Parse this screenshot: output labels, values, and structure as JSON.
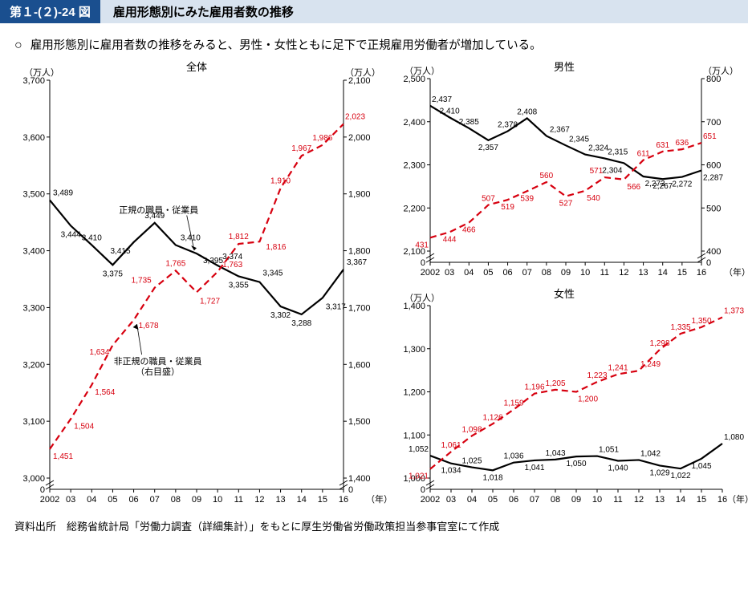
{
  "header": {
    "label": "第１-(２)-24 図",
    "title": "雇用形態別にみた雇用者数の推移"
  },
  "subtitle": "雇用形態別に雇用者数の推移をみると、男性・女性ともに足下で正規雇用労働者が増加している。",
  "footnote": "資料出所　総務省統計局「労働力調査（詳細集計）」をもとに厚生労働省労働政策担当参事官室にて作成",
  "years": [
    "2002",
    "03",
    "04",
    "05",
    "06",
    "07",
    "08",
    "09",
    "10",
    "11",
    "12",
    "13",
    "14",
    "15",
    "16"
  ],
  "colors": {
    "regular": "#000000",
    "nonregular": "#d7000f",
    "axis": "#000000",
    "bg": "#ffffff"
  },
  "charts": {
    "total": {
      "title": "全体",
      "unit_left": "（万人）",
      "unit_right": "（万人）",
      "x_unit": "（年）",
      "left_axis": {
        "min": 3000,
        "max": 3700,
        "step": 100,
        "zero_below": 0
      },
      "right_axis": {
        "min": 1400,
        "max": 2100,
        "step": 100,
        "zero_below": 0
      },
      "regular": [
        3489,
        3444,
        3410,
        3375,
        3415,
        3449,
        3410,
        3395,
        3374,
        3355,
        3345,
        3302,
        3288,
        3317,
        3367
      ],
      "nonregular": [
        1451,
        1504,
        1564,
        1634,
        1678,
        1735,
        1765,
        1727,
        1763,
        1812,
        1816,
        1910,
        1967,
        1986,
        2023
      ],
      "ann_regular": "正規の職員・従業員",
      "ann_nonregular": "非正規の職員・従業員\n（右目盛）"
    },
    "male": {
      "title": "男性",
      "unit_left": "（万人）",
      "unit_right": "（万人）",
      "x_unit": "（年）",
      "left_axis": {
        "min": 2100,
        "max": 2500,
        "step": 100,
        "zero_below": 0
      },
      "right_axis": {
        "min": 400,
        "max": 800,
        "step": 100,
        "zero_below": 0
      },
      "regular": [
        2437,
        2410,
        2385,
        2357,
        2378,
        2408,
        2367,
        2345,
        2324,
        2315,
        2304,
        2273,
        2267,
        2272,
        2287
      ],
      "nonregular": [
        431,
        444,
        466,
        507,
        519,
        539,
        560,
        527,
        540,
        571,
        566,
        611,
        631,
        636,
        651
      ]
    },
    "female": {
      "title": "女性",
      "unit_left": "（万人）",
      "unit_right": "",
      "x_unit": "（年）",
      "left_axis": {
        "min": 1000,
        "max": 1400,
        "step": 100,
        "zero_below": 0
      },
      "right_axis": null,
      "regular": [
        1052,
        1034,
        1025,
        1018,
        1036,
        1041,
        1043,
        1050,
        1051,
        1040,
        1042,
        1029,
        1022,
        1045,
        1080
      ],
      "nonregular": [
        1021,
        1061,
        1098,
        1126,
        1159,
        1196,
        1205,
        1200,
        1223,
        1241,
        1249,
        1298,
        1335,
        1350,
        1373
      ]
    }
  }
}
